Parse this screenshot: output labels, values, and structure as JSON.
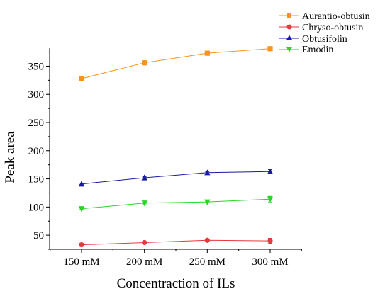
{
  "chart_data": {
    "type": "line",
    "categories": [
      "150 mM",
      "200 mM",
      "250 mM",
      "300 mM"
    ],
    "xlabel": "Concentraction of ILs",
    "ylabel": "Peak area",
    "ylim": [
      25,
      382
    ],
    "yticks": [
      50,
      100,
      150,
      200,
      250,
      300,
      350
    ],
    "grid": false,
    "legend_position": "top-right",
    "series": [
      {
        "name": "Aurantio-obtusin",
        "color": "#f7941d",
        "marker": "square",
        "values": [
          328,
          356,
          373,
          381
        ],
        "errors": [
          1.5,
          1.5,
          1.5,
          1.5
        ]
      },
      {
        "name": "Chryso-obtusin",
        "color": "#e8383d",
        "marker": "circle",
        "values": [
          33,
          37,
          41,
          40
        ],
        "errors": [
          2.5,
          2,
          2,
          4.5
        ]
      },
      {
        "name": "Obtusifolin",
        "color": "#1a1aa8",
        "marker": "triangle-up",
        "values": [
          141,
          152,
          161,
          163
        ],
        "errors": [
          1.5,
          2,
          2,
          3.5
        ]
      },
      {
        "name": "Emodin",
        "color": "#22d922",
        "marker": "triangle-down",
        "values": [
          97,
          107,
          109,
          114
        ],
        "errors": [
          1.5,
          1.5,
          1.5,
          5
        ]
      }
    ]
  }
}
